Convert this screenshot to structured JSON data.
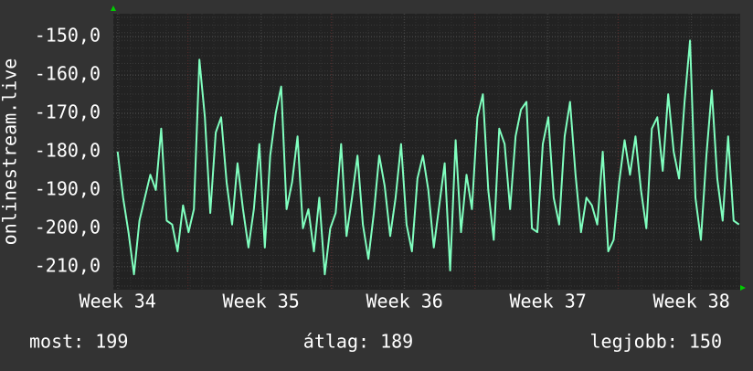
{
  "chart_data": {
    "type": "line",
    "y_label": "onlinestream.live",
    "xlim": [
      33.97,
      38.34
    ],
    "xticks": [
      {
        "value": 34,
        "label": "Week 34"
      },
      {
        "value": 35,
        "label": "Week 35"
      },
      {
        "value": 36,
        "label": "Week 36"
      },
      {
        "value": 37,
        "label": "Week 37"
      },
      {
        "value": 38,
        "label": "Week 38"
      }
    ],
    "ylim": [
      -216,
      -144
    ],
    "yticks": [
      {
        "value": -150,
        "label": "-150,0"
      },
      {
        "value": -160,
        "label": "-160,0"
      },
      {
        "value": -170,
        "label": "-170,0"
      },
      {
        "value": -180,
        "label": "-180,0"
      },
      {
        "value": -190,
        "label": "-190,0"
      },
      {
        "value": -200,
        "label": "-200,0"
      },
      {
        "value": -210,
        "label": "-210,0"
      }
    ],
    "grid": true,
    "x": [
      34.0,
      34.038,
      34.076,
      34.114,
      34.152,
      34.19,
      34.228,
      34.266,
      34.304,
      34.342,
      34.38,
      34.418,
      34.456,
      34.494,
      34.532,
      34.57,
      34.608,
      34.646,
      34.684,
      34.722,
      34.76,
      34.798,
      34.836,
      34.874,
      34.912,
      34.95,
      34.988,
      35.026,
      35.064,
      35.102,
      35.14,
      35.178,
      35.216,
      35.254,
      35.292,
      35.33,
      35.368,
      35.406,
      35.444,
      35.482,
      35.52,
      35.558,
      35.596,
      35.634,
      35.672,
      35.71,
      35.748,
      35.786,
      35.824,
      35.862,
      35.9,
      35.938,
      35.976,
      36.014,
      36.052,
      36.09,
      36.128,
      36.166,
      36.204,
      36.242,
      36.28,
      36.318,
      36.356,
      36.394,
      36.432,
      36.47,
      36.508,
      36.546,
      36.584,
      36.622,
      36.66,
      36.698,
      36.736,
      36.774,
      36.812,
      36.85,
      36.888,
      36.926,
      36.964,
      37.002,
      37.04,
      37.078,
      37.116,
      37.154,
      37.192,
      37.23,
      37.268,
      37.306,
      37.344,
      37.382,
      37.42,
      37.458,
      37.496,
      37.534,
      37.572,
      37.61,
      37.648,
      37.686,
      37.724,
      37.762,
      37.8,
      37.838,
      37.876,
      37.914,
      37.952,
      37.99,
      38.028,
      38.066,
      38.104,
      38.142,
      38.18,
      38.218,
      38.256,
      38.294,
      38.332
    ],
    "series": [
      {
        "color": "#80ffbf",
        "values": [
          -180,
          -192,
          -201,
          -212,
          -198,
          -192,
          -186,
          -190,
          -174,
          -198,
          -199,
          -206,
          -194,
          -201,
          -195,
          -156,
          -171,
          -196,
          -175,
          -171,
          -188,
          -199,
          -183,
          -195,
          -205,
          -195,
          -178,
          -205,
          -181,
          -170,
          -163,
          -195,
          -188,
          -176,
          -200,
          -195,
          -206,
          -192,
          -212,
          -200,
          -196,
          -178,
          -202,
          -192,
          -181,
          -199,
          -208,
          -196,
          -181,
          -189,
          -202,
          -192,
          -178,
          -199,
          -206,
          -187,
          -181,
          -190,
          -205,
          -194,
          -183,
          -211,
          -177,
          -201,
          -186,
          -195,
          -171,
          -165,
          -190,
          -203,
          -174,
          -178,
          -195,
          -176,
          -169,
          -167,
          -200,
          -201,
          -178,
          -171,
          -192,
          -199,
          -176,
          -167,
          -186,
          -201,
          -192,
          -194,
          -199,
          -180,
          -206,
          -203,
          -188,
          -177,
          -186,
          -176,
          -190,
          -200,
          -174,
          -171,
          -185,
          -165,
          -180,
          -187,
          -167,
          -151,
          -192,
          -203,
          -181,
          -164,
          -187,
          -198,
          -176,
          -198,
          -199
        ]
      }
    ],
    "footer": [
      "most: 199",
      "átlag: 189",
      "legjobb: 150"
    ]
  }
}
